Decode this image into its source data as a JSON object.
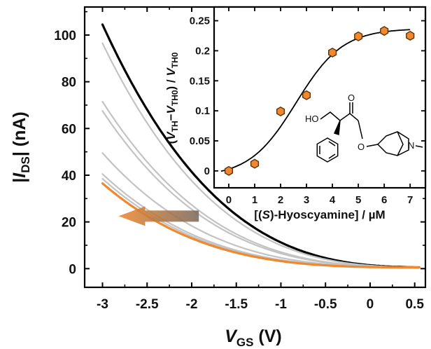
{
  "colors": {
    "black": "#000000",
    "gray": "#c3c3c3",
    "orange": "#f0882f",
    "marker_edge": "#5a3206"
  },
  "chart_data": [
    {
      "type": "line",
      "xlabel": "V_GS (V)",
      "ylabel": "|I_DS| (nA)",
      "xlim": [
        -3.2,
        0.62
      ],
      "ylim": [
        -8,
        112
      ],
      "xticks": [
        -3,
        -2.5,
        -2,
        -1.5,
        -1,
        -0.5,
        0,
        0.5
      ],
      "xtick_labels": [
        "-3",
        "-2.5",
        "-2",
        "-1.5",
        "-1",
        "-0.5",
        "0",
        "0.5"
      ],
      "yticks": [
        0,
        20,
        40,
        60,
        80,
        100
      ],
      "ytick_labels": [
        "0",
        "20",
        "40",
        "60",
        "80",
        "100"
      ],
      "x_range": [
        -3,
        0.55
      ],
      "series": [
        {
          "role": "initial",
          "color": "#000000",
          "start_current": 104,
          "threshold_shift": 0
        },
        {
          "role": "intermediate",
          "color": "#c3c3c3",
          "start_current": 96,
          "threshold_shift": 0.05
        },
        {
          "role": "intermediate",
          "color": "#c3c3c3",
          "start_current": 71,
          "threshold_shift": 0.12
        },
        {
          "role": "intermediate",
          "color": "#c3c3c3",
          "start_current": 67,
          "threshold_shift": 0.16
        },
        {
          "role": "intermediate",
          "color": "#c3c3c3",
          "start_current": 49,
          "threshold_shift": 0.22
        },
        {
          "role": "intermediate",
          "color": "#c3c3c3",
          "start_current": 40,
          "threshold_shift": 0.28
        },
        {
          "role": "intermediate",
          "color": "#c3c3c3",
          "start_current": 38,
          "threshold_shift": 0.31
        },
        {
          "role": "final",
          "color": "#f0882f",
          "start_current": 36,
          "threshold_shift": 0.35
        }
      ],
      "annotation": {
        "type": "arrow",
        "direction": "left",
        "meaning": "threshold shift with increasing concentration",
        "from": [
          -1.92,
          22.5
        ],
        "to": [
          -2.82,
          22.5
        ]
      }
    },
    {
      "type": "scatter",
      "xlabel": "[(S)-Hyoscyamine] / µM",
      "ylabel": "(V_TH−V_TH0) / V_TH0",
      "xlim": [
        -0.35,
        7.4
      ],
      "ylim": [
        -0.02,
        0.26
      ],
      "xticks": [
        0,
        1,
        2,
        3,
        4,
        5,
        6,
        7
      ],
      "xtick_labels": [
        "0",
        "1",
        "2",
        "3",
        "4",
        "5",
        "6",
        "7"
      ],
      "yticks": [
        0,
        0.05,
        0.1,
        0.15,
        0.2,
        0.25
      ],
      "ytick_labels": [
        "0",
        "0.05",
        "0.1",
        "0.15",
        "0.2",
        "0.25"
      ],
      "x": [
        0,
        1,
        2,
        3,
        4,
        5,
        6,
        7
      ],
      "y": [
        0.0,
        0.012,
        0.099,
        0.126,
        0.197,
        0.224,
        0.233,
        0.225
      ],
      "fit": {
        "type": "sigmoid",
        "A1": -0.01,
        "A2": 0.237,
        "x0": 2.6,
        "dx": 0.9
      },
      "marker": "hexagon",
      "marker_color": "#f0882f",
      "inset_structure": {
        "labels": [
          "HO",
          "O",
          "O",
          "N"
        ]
      }
    }
  ]
}
